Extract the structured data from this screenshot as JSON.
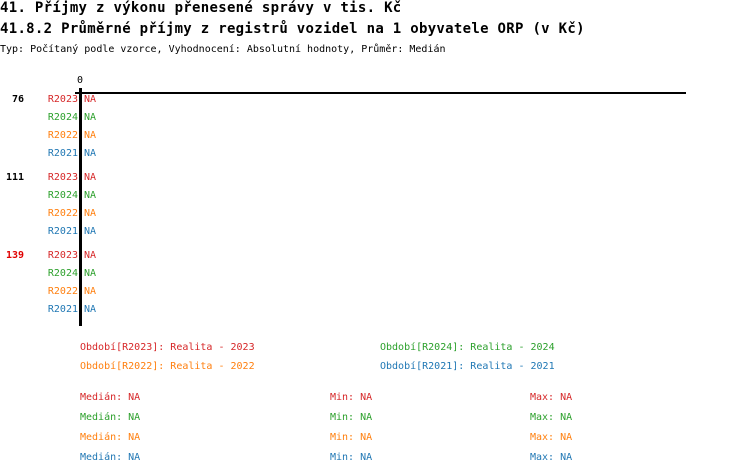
{
  "header": {
    "title": "41. Příjmy z výkonu přenesené správy v tis. Kč",
    "subtitle": "41.8.2 Průměrné příjmy z registrů vozidel na 1 obyvatele ORP (v Kč)",
    "info": "Typ: Počítaný podle vzorce, Vyhodnocení: Absolutní hodnoty, Průměr: Medián"
  },
  "colors": {
    "R2023": "#d62728",
    "R2024": "#2ca02c",
    "R2022": "#ff7f0e",
    "R2021": "#1f77b4",
    "highlight": "#e00000"
  },
  "chart_data": {
    "type": "bar",
    "orientation": "horizontal",
    "x_ticks": [
      "0"
    ],
    "groups": [
      {
        "label": "76",
        "highlight": false
      },
      {
        "label": "111",
        "highlight": false
      },
      {
        "label": "139",
        "highlight": true
      }
    ],
    "series": [
      {
        "name": "R2023",
        "values": [
          "NA",
          "NA",
          "NA"
        ]
      },
      {
        "name": "R2024",
        "values": [
          "NA",
          "NA",
          "NA"
        ]
      },
      {
        "name": "R2022",
        "values": [
          "NA",
          "NA",
          "NA"
        ]
      },
      {
        "name": "R2021",
        "values": [
          "NA",
          "NA",
          "NA"
        ]
      }
    ],
    "legend": [
      {
        "series": "R2023",
        "text": "Období[R2023]: Realita - 2023"
      },
      {
        "series": "R2024",
        "text": "Období[R2024]: Realita - 2024"
      },
      {
        "series": "R2022",
        "text": "Období[R2022]: Realita - 2022"
      },
      {
        "series": "R2021",
        "text": "Období[R2021]: Realita - 2021"
      }
    ],
    "stats": [
      {
        "series": "R2023",
        "median": "Medián: NA",
        "min": "Min: NA",
        "max": "Max: NA"
      },
      {
        "series": "R2024",
        "median": "Medián: NA",
        "min": "Min: NA",
        "max": "Max: NA"
      },
      {
        "series": "R2022",
        "median": "Medián: NA",
        "min": "Min: NA",
        "max": "Max: NA"
      },
      {
        "series": "R2021",
        "median": "Medián: NA",
        "min": "Min: NA",
        "max": "Max: NA"
      }
    ]
  }
}
